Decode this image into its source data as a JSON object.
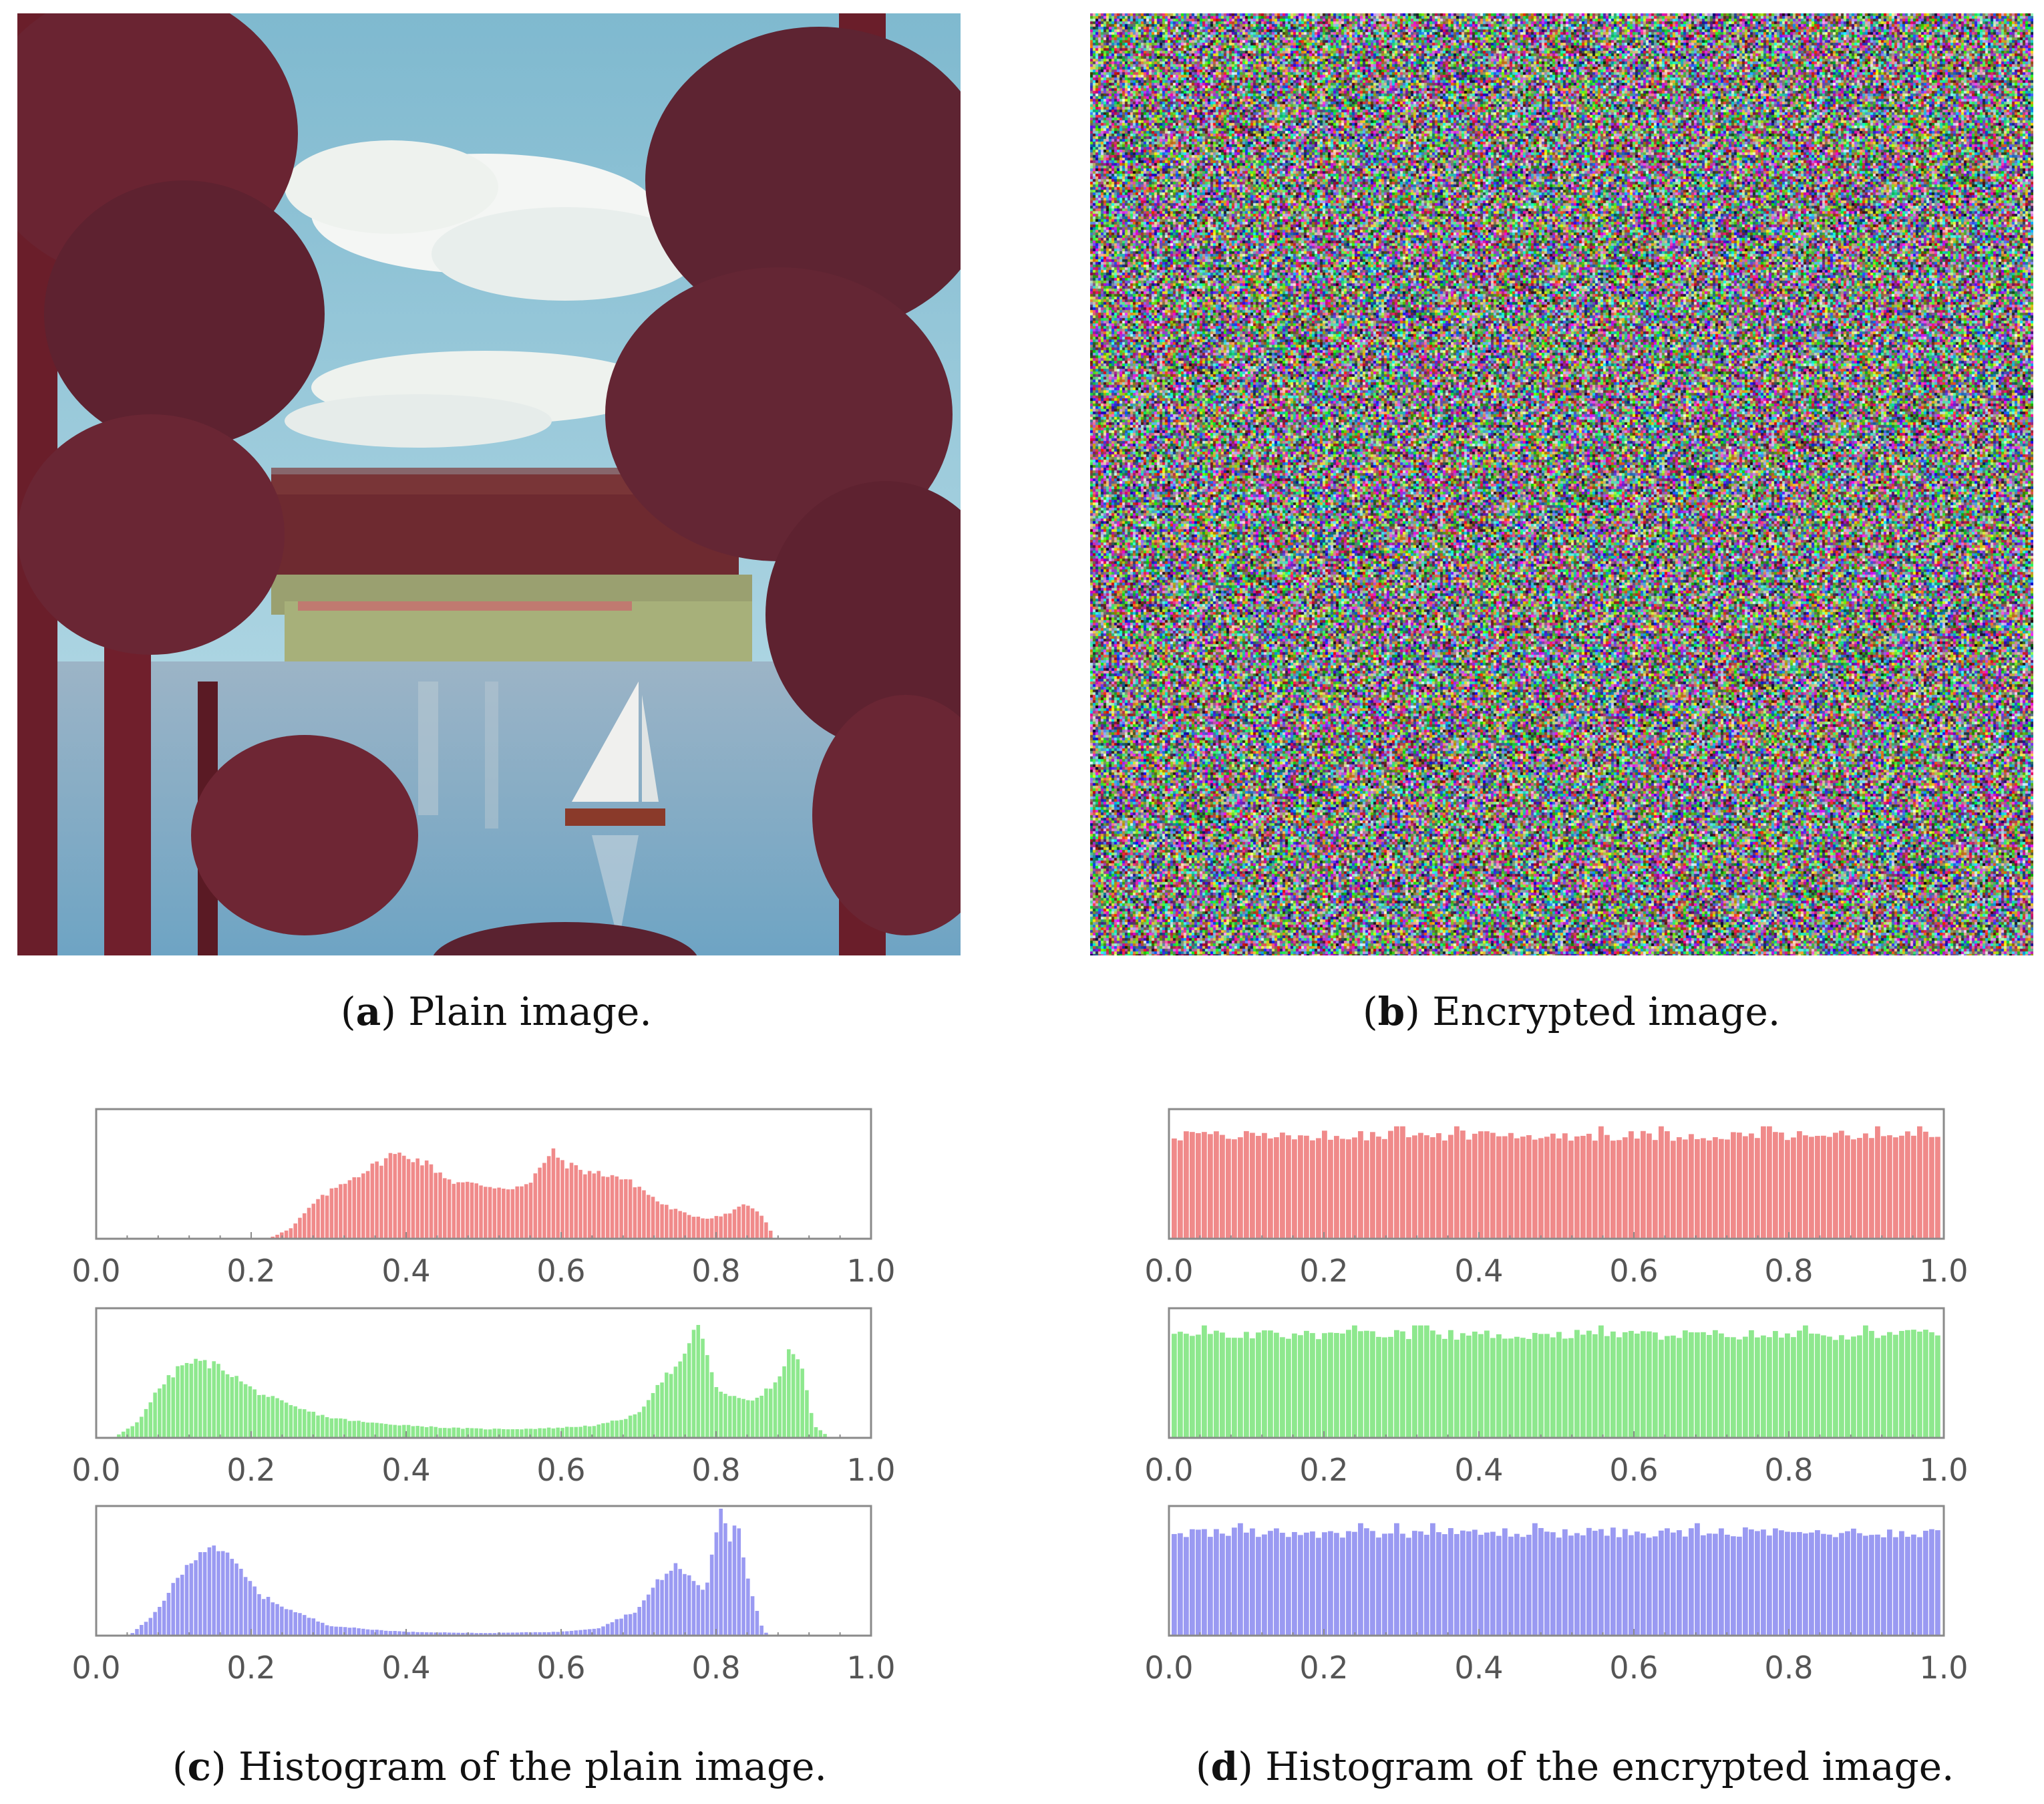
{
  "figure": {
    "panels": [
      {
        "id": "a",
        "letter": "a",
        "text": ") Plain image.",
        "open": "("
      },
      {
        "id": "b",
        "letter": "b",
        "text": ") Encrypted image.",
        "open": "("
      },
      {
        "id": "c",
        "letter": "c",
        "text": ") Histogram of the plain image.",
        "open": "("
      },
      {
        "id": "d",
        "letter": "d",
        "text": ") Histogram of the encrypted image.",
        "open": "("
      }
    ]
  },
  "chart_data": [
    {
      "type": "bar",
      "panel": "c",
      "channel": "red",
      "color": "#f08a8a",
      "xlim": [
        0,
        1
      ],
      "xticks": [
        "0.0",
        "0.2",
        "0.4",
        "0.6",
        "0.8",
        "1.0"
      ],
      "profile": [
        [
          0.22,
          0
        ],
        [
          0.25,
          0.08
        ],
        [
          0.28,
          0.28
        ],
        [
          0.32,
          0.45
        ],
        [
          0.36,
          0.58
        ],
        [
          0.38,
          0.66
        ],
        [
          0.4,
          0.66
        ],
        [
          0.43,
          0.58
        ],
        [
          0.46,
          0.45
        ],
        [
          0.5,
          0.42
        ],
        [
          0.53,
          0.4
        ],
        [
          0.56,
          0.42
        ],
        [
          0.58,
          0.62
        ],
        [
          0.59,
          0.68
        ],
        [
          0.61,
          0.58
        ],
        [
          0.64,
          0.52
        ],
        [
          0.67,
          0.5
        ],
        [
          0.7,
          0.42
        ],
        [
          0.73,
          0.28
        ],
        [
          0.76,
          0.2
        ],
        [
          0.79,
          0.16
        ],
        [
          0.82,
          0.2
        ],
        [
          0.84,
          0.28
        ],
        [
          0.86,
          0.2
        ],
        [
          0.88,
          0.0
        ]
      ]
    },
    {
      "type": "bar",
      "panel": "c",
      "channel": "green",
      "color": "#8ee88e",
      "xlim": [
        0,
        1
      ],
      "xticks": [
        "0.0",
        "0.2",
        "0.4",
        "0.6",
        "0.8",
        "1.0"
      ],
      "profile": [
        [
          0.02,
          0
        ],
        [
          0.05,
          0.12
        ],
        [
          0.08,
          0.4
        ],
        [
          0.11,
          0.58
        ],
        [
          0.13,
          0.6
        ],
        [
          0.16,
          0.56
        ],
        [
          0.2,
          0.38
        ],
        [
          0.25,
          0.25
        ],
        [
          0.3,
          0.16
        ],
        [
          0.35,
          0.12
        ],
        [
          0.4,
          0.1
        ],
        [
          0.45,
          0.08
        ],
        [
          0.5,
          0.07
        ],
        [
          0.55,
          0.07
        ],
        [
          0.6,
          0.08
        ],
        [
          0.65,
          0.1
        ],
        [
          0.7,
          0.18
        ],
        [
          0.73,
          0.45
        ],
        [
          0.76,
          0.6
        ],
        [
          0.775,
          0.85
        ],
        [
          0.78,
          0.92
        ],
        [
          0.8,
          0.42
        ],
        [
          0.82,
          0.32
        ],
        [
          0.85,
          0.3
        ],
        [
          0.88,
          0.42
        ],
        [
          0.9,
          0.7
        ],
        [
          0.91,
          0.65
        ],
        [
          0.93,
          0.1
        ],
        [
          0.95,
          0.0
        ]
      ]
    },
    {
      "type": "bar",
      "panel": "c",
      "channel": "blue",
      "color": "#9a9af2",
      "xlim": [
        0,
        1
      ],
      "xticks": [
        "0.0",
        "0.2",
        "0.4",
        "0.6",
        "0.8",
        "1.0"
      ],
      "profile": [
        [
          0.04,
          0
        ],
        [
          0.07,
          0.15
        ],
        [
          0.1,
          0.42
        ],
        [
          0.13,
          0.66
        ],
        [
          0.15,
          0.72
        ],
        [
          0.18,
          0.55
        ],
        [
          0.21,
          0.32
        ],
        [
          0.25,
          0.2
        ],
        [
          0.3,
          0.08
        ],
        [
          0.35,
          0.05
        ],
        [
          0.4,
          0.03
        ],
        [
          0.5,
          0.02
        ],
        [
          0.6,
          0.03
        ],
        [
          0.65,
          0.06
        ],
        [
          0.7,
          0.2
        ],
        [
          0.73,
          0.45
        ],
        [
          0.75,
          0.55
        ],
        [
          0.78,
          0.4
        ],
        [
          0.79,
          0.35
        ],
        [
          0.8,
          0.78
        ],
        [
          0.81,
          1.0
        ],
        [
          0.82,
          0.75
        ],
        [
          0.83,
          0.95
        ],
        [
          0.84,
          0.55
        ],
        [
          0.86,
          0.1
        ],
        [
          0.87,
          0.0
        ]
      ]
    },
    {
      "type": "bar",
      "panel": "d",
      "channel": "red",
      "color": "#f08a8a",
      "xlim": [
        0,
        1
      ],
      "xticks": [
        "0.0",
        "0.2",
        "0.4",
        "0.6",
        "0.8",
        "1.0"
      ],
      "level": 0.82
    },
    {
      "type": "bar",
      "panel": "d",
      "channel": "green",
      "color": "#8ee88e",
      "xlim": [
        0,
        1
      ],
      "xticks": [
        "0.0",
        "0.2",
        "0.4",
        "0.6",
        "0.8",
        "1.0"
      ],
      "level": 0.82
    },
    {
      "type": "bar",
      "panel": "d",
      "channel": "blue",
      "color": "#9a9af2",
      "xlim": [
        0,
        1
      ],
      "xticks": [
        "0.0",
        "0.2",
        "0.4",
        "0.6",
        "0.8",
        "1.0"
      ],
      "level": 0.82
    }
  ]
}
